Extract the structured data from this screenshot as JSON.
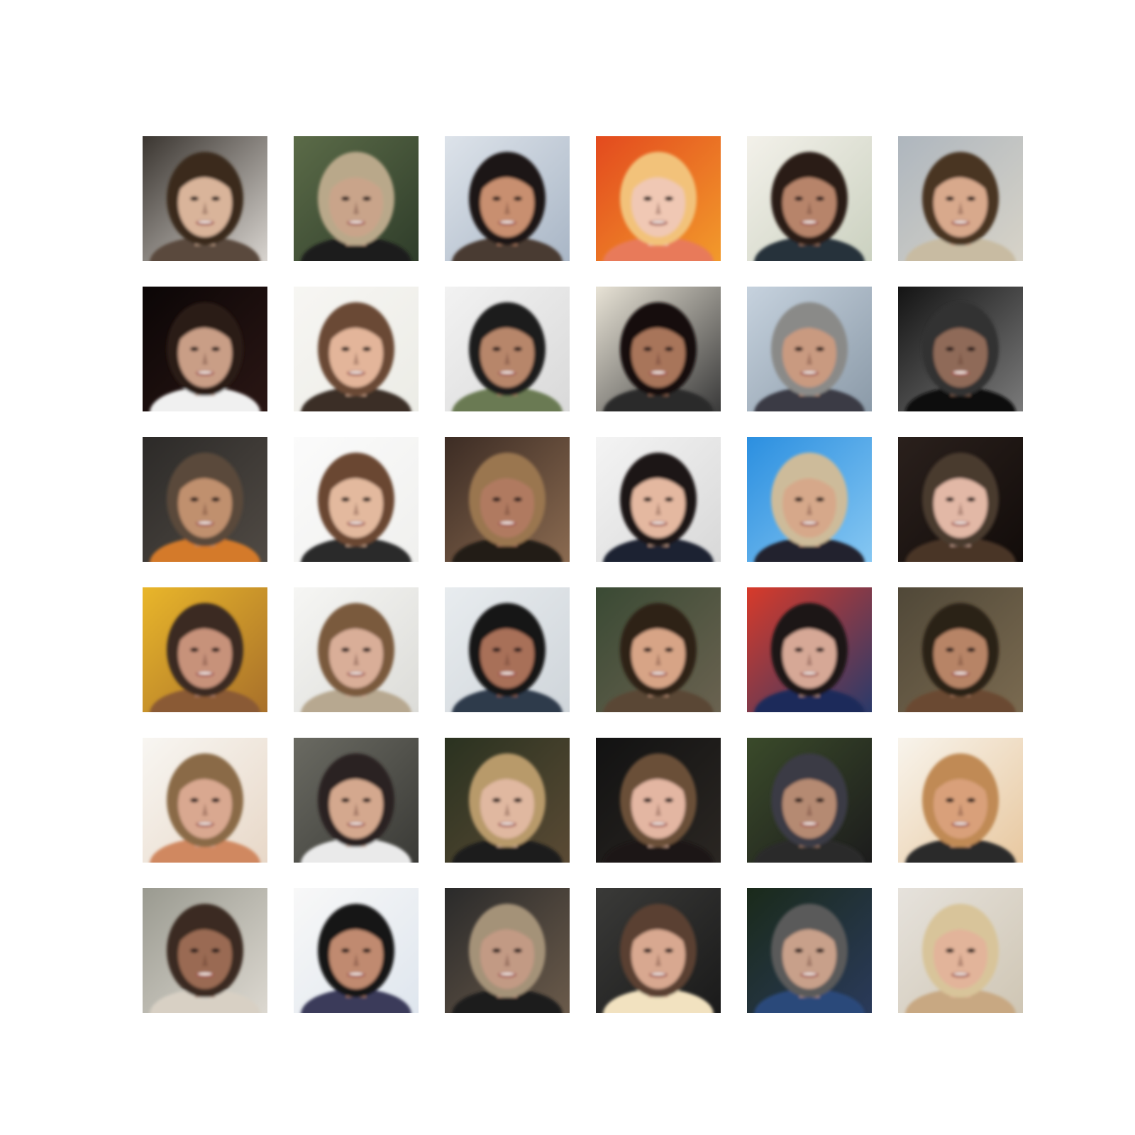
{
  "grid": {
    "rows": 6,
    "cols": 6,
    "tiles": [
      {
        "bg": [
          "#3a3530",
          "#d8d4cf"
        ],
        "skin": "#d9b49a",
        "hair": "#3a2a1c",
        "shirt": "#5a4a3c"
      },
      {
        "bg": [
          "#5b6b48",
          "#2f3d2a"
        ],
        "skin": "#c9a48a",
        "hair": "#b9a88a",
        "shirt": "#1e1e1e"
      },
      {
        "bg": [
          "#dde3ea",
          "#a9b6c6"
        ],
        "skin": "#c88f6f",
        "hair": "#1c1614",
        "shirt": "#4a3a30"
      },
      {
        "bg": [
          "#e34a1e",
          "#f29a2b"
        ],
        "skin": "#f0c8b4",
        "hair": "#f2c27a",
        "shirt": "#e87a5a"
      },
      {
        "bg": [
          "#f3f1ea",
          "#cbd1c0"
        ],
        "skin": "#b7846a",
        "hair": "#2a1e18",
        "shirt": "#25303a"
      },
      {
        "bg": [
          "#aeb6be",
          "#d7d3c8"
        ],
        "skin": "#d8a98c",
        "hair": "#4a3524",
        "shirt": "#c8bba2"
      },
      {
        "bg": [
          "#0b0606",
          "#2a1614"
        ],
        "skin": "#c99e86",
        "hair": "#2a1a14",
        "shirt": "#f0f0f0"
      },
      {
        "bg": [
          "#f7f6f3",
          "#ecece6"
        ],
        "skin": "#e3b59a",
        "hair": "#6b4a34",
        "shirt": "#3a2e28"
      },
      {
        "bg": [
          "#f2f2f2",
          "#d9d9d9"
        ],
        "skin": "#b7866a",
        "hair": "#1a1a1a",
        "shirt": "#6a7a52"
      },
      {
        "bg": [
          "#e8e3d6",
          "#3a3a3a"
        ],
        "skin": "#a8745a",
        "hair": "#141010",
        "shirt": "#2a2a2a"
      },
      {
        "bg": [
          "#c6d2de",
          "#8b9aa8"
        ],
        "skin": "#c99a80",
        "hair": "#8a8a88",
        "shirt": "#3a3a44"
      },
      {
        "bg": [
          "#141414",
          "#7a7a7a"
        ],
        "skin": "#8f6a58",
        "hair": "#303030",
        "shirt": "#111111"
      },
      {
        "bg": [
          "#2c2a28",
          "#504a44"
        ],
        "skin": "#c0906e",
        "hair": "#5a4a3a",
        "shirt": "#d47a2a"
      },
      {
        "bg": [
          "#fbfbfb",
          "#f0f0ee"
        ],
        "skin": "#e3b99e",
        "hair": "#6a4630",
        "shirt": "#2a2a2a"
      },
      {
        "bg": [
          "#3c2c24",
          "#8a6a50"
        ],
        "skin": "#b07a60",
        "hair": "#9a7650",
        "shirt": "#221a16"
      },
      {
        "bg": [
          "#f4f4f4",
          "#d8d8d8"
        ],
        "skin": "#e4b8a0",
        "hair": "#1c1818",
        "shirt": "#1e2230"
      },
      {
        "bg": [
          "#2b8fe0",
          "#86c7f2"
        ],
        "skin": "#d6a88a",
        "hair": "#cdbb9a",
        "shirt": "#20242e"
      },
      {
        "bg": [
          "#2a201c",
          "#120c0a"
        ],
        "skin": "#e2b8a6",
        "hair": "#4a3a2e",
        "shirt": "#4a3426"
      },
      {
        "bg": [
          "#e9b62a",
          "#a8702a"
        ],
        "skin": "#c7927a",
        "hair": "#3a2a20",
        "shirt": "#8a5a34"
      },
      {
        "bg": [
          "#f6f6f4",
          "#dcdcd8"
        ],
        "skin": "#d9ae98",
        "hair": "#7a5a3c",
        "shirt": "#b7a890"
      },
      {
        "bg": [
          "#e8ecef",
          "#cfd5da"
        ],
        "skin": "#a87058",
        "hair": "#141212",
        "shirt": "#2e3a4c"
      },
      {
        "bg": [
          "#3a4a34",
          "#6a6250"
        ],
        "skin": "#d7a486",
        "hair": "#2e2218",
        "shirt": "#5a4636"
      },
      {
        "bg": [
          "#d83a2a",
          "#2a3a6a"
        ],
        "skin": "#d6a896",
        "hair": "#1a1418",
        "shirt": "#1c2a5a"
      },
      {
        "bg": [
          "#504838",
          "#7a6a50"
        ],
        "skin": "#b78466",
        "hair": "#2a2018",
        "shirt": "#6a4a30"
      },
      {
        "bg": [
          "#f8f6f2",
          "#e8d8c8"
        ],
        "skin": "#d9a890",
        "hair": "#8a6a46",
        "shirt": "#d08860"
      },
      {
        "bg": [
          "#6a6a62",
          "#3a3a36"
        ],
        "skin": "#d4a88e",
        "hair": "#2a2420",
        "shirt": "#eaeaea"
      },
      {
        "bg": [
          "#2a3220",
          "#5a4a34"
        ],
        "skin": "#e0b8a0",
        "hair": "#b89a6a",
        "shirt": "#1a1a1a"
      },
      {
        "bg": [
          "#121212",
          "#2a2622"
        ],
        "skin": "#e3b6a2",
        "hair": "#6a5038",
        "shirt": "#1a1614"
      },
      {
        "bg": [
          "#3a4a2a",
          "#1c1c1c"
        ],
        "skin": "#b58a72",
        "hair": "#3a3a44",
        "shirt": "#2a2a2a"
      },
      {
        "bg": [
          "#f8f4ec",
          "#e8c8a0"
        ],
        "skin": "#d9a07a",
        "hair": "#c08a54",
        "shirt": "#2a2a2a"
      },
      {
        "bg": [
          "#9a9a90",
          "#dcd8d0"
        ],
        "skin": "#9a6a52",
        "hair": "#3a2a22",
        "shirt": "#d8d0c4"
      },
      {
        "bg": [
          "#f8f8f8",
          "#dfe6ee"
        ],
        "skin": "#c08a70",
        "hair": "#141416",
        "shirt": "#3a3a5a"
      },
      {
        "bg": [
          "#2a2a2a",
          "#6a5a4a"
        ],
        "skin": "#c29a84",
        "hair": "#a49278",
        "shirt": "#1e1e1e"
      },
      {
        "bg": [
          "#3a3a38",
          "#1a1a1a"
        ],
        "skin": "#d8a890",
        "hair": "#5a4030",
        "shirt": "#f2e2c0"
      },
      {
        "bg": [
          "#1a2a1a",
          "#2a3a5a"
        ],
        "skin": "#c8a08a",
        "hair": "#5a5a5a",
        "shirt": "#2a4a7a"
      },
      {
        "bg": [
          "#e6e2dc",
          "#cfc6b4"
        ],
        "skin": "#e2b49a",
        "hair": "#d8c49a",
        "shirt": "#c8a882"
      }
    ]
  }
}
